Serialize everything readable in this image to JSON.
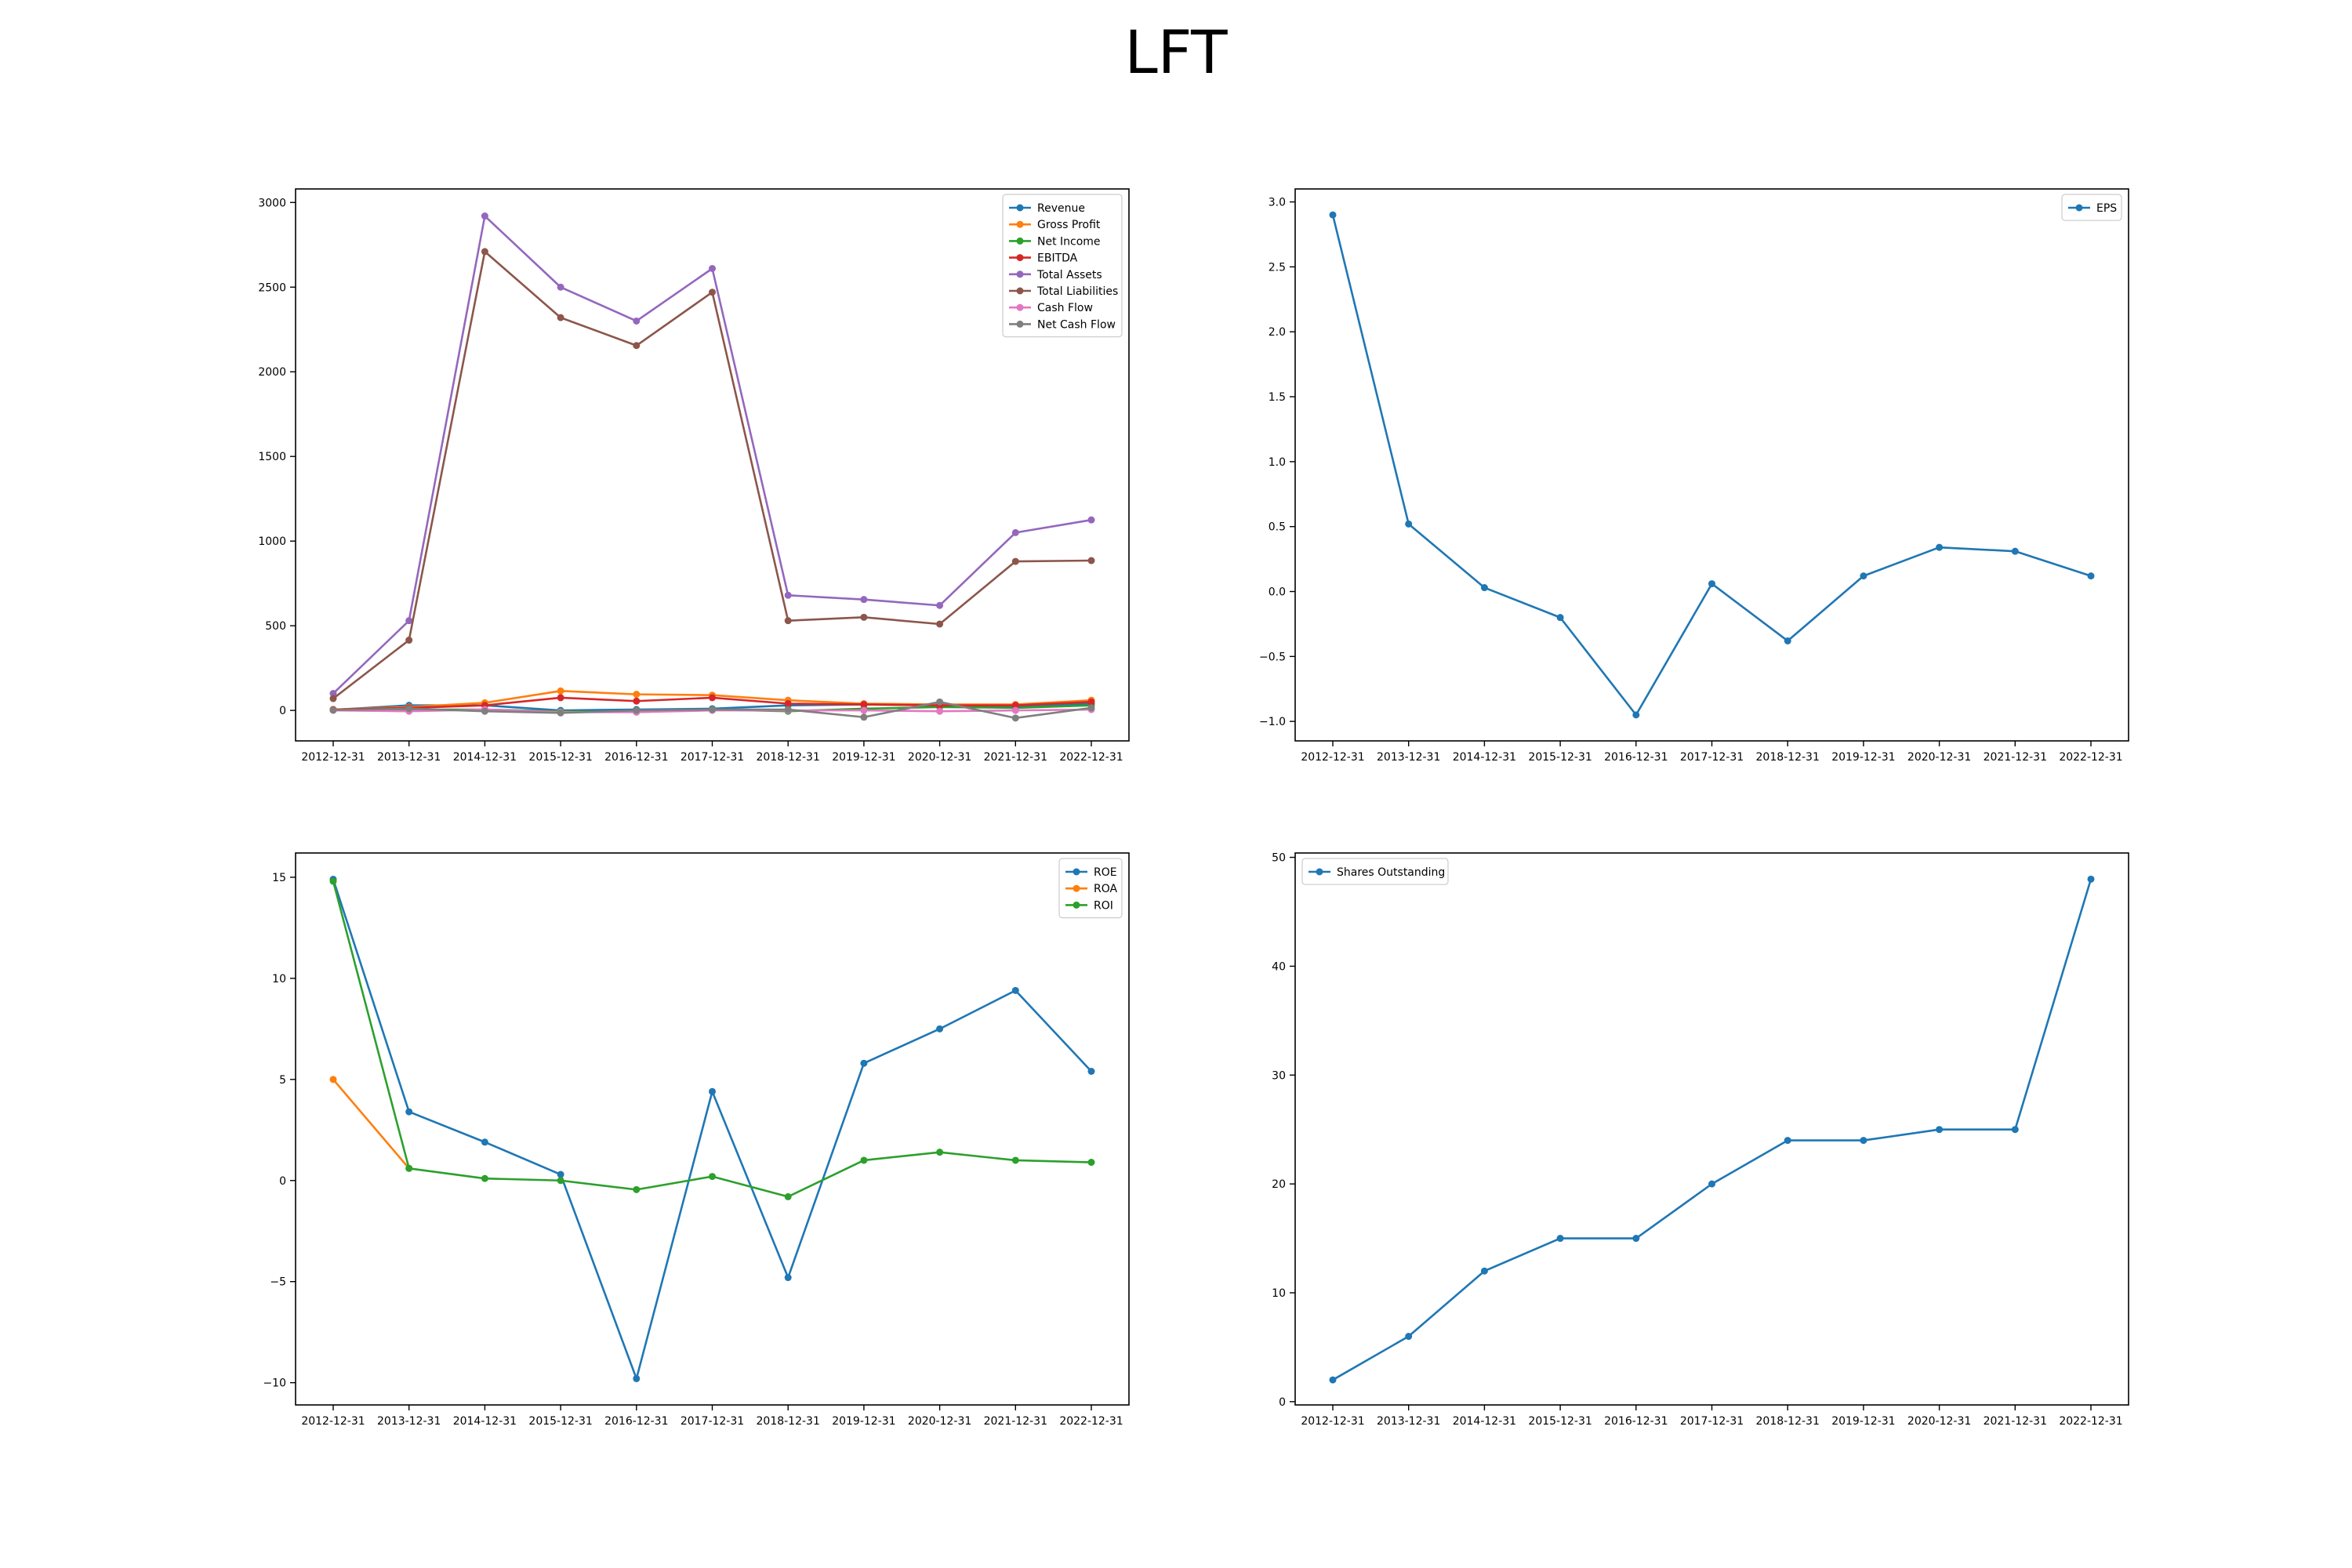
{
  "page_title": "LFT",
  "colors": {
    "blue": "#1f77b4",
    "orange": "#ff7f0e",
    "green": "#2ca02c",
    "red": "#d62728",
    "purple": "#9467bd",
    "brown": "#8c564b",
    "pink": "#e377c2",
    "gray": "#7f7f7f"
  },
  "chart_data": [
    {
      "type": "line",
      "title": "",
      "xlabel": "",
      "ylabel": "",
      "legend_position": "top-right",
      "grid": false,
      "x": [
        "2012-12-31",
        "2013-12-31",
        "2014-12-31",
        "2015-12-31",
        "2016-12-31",
        "2017-12-31",
        "2018-12-31",
        "2019-12-31",
        "2020-12-31",
        "2021-12-31",
        "2022-12-31"
      ],
      "ylim": [
        -180,
        3080
      ],
      "yticks": [
        0,
        500,
        1000,
        1500,
        2000,
        2500,
        3000
      ],
      "series": [
        {
          "name": "Revenue",
          "color": "#1f77b4",
          "values": [
            3,
            30,
            30,
            0,
            5,
            10,
            30,
            35,
            30,
            25,
            40
          ]
        },
        {
          "name": "Gross Profit",
          "color": "#ff7f0e",
          "values": [
            5,
            20,
            45,
            115,
            95,
            90,
            60,
            40,
            35,
            35,
            60
          ]
        },
        {
          "name": "Net Income",
          "color": "#2ca02c",
          "values": [
            3,
            5,
            5,
            -5,
            -10,
            5,
            -5,
            10,
            20,
            15,
            30
          ]
        },
        {
          "name": "EBITDA",
          "color": "#d62728",
          "values": [
            5,
            15,
            30,
            75,
            55,
            75,
            40,
            35,
            30,
            30,
            50
          ]
        },
        {
          "name": "Total Assets",
          "color": "#9467bd",
          "values": [
            100,
            530,
            2920,
            2500,
            2300,
            2610,
            680,
            655,
            620,
            1050,
            1125
          ]
        },
        {
          "name": "Total Liabilities",
          "color": "#8c564b",
          "values": [
            70,
            415,
            2710,
            2320,
            2155,
            2470,
            530,
            550,
            510,
            880,
            885
          ]
        },
        {
          "name": "Cash Flow",
          "color": "#e377c2",
          "values": [
            0,
            -5,
            5,
            -10,
            -10,
            0,
            0,
            0,
            -5,
            0,
            5
          ]
        },
        {
          "name": "Net Cash Flow",
          "color": "#7f7f7f",
          "values": [
            2,
            10,
            -5,
            -15,
            0,
            5,
            5,
            -40,
            50,
            -45,
            15
          ]
        }
      ]
    },
    {
      "type": "line",
      "title": "",
      "xlabel": "",
      "ylabel": "",
      "legend_position": "top-right",
      "grid": false,
      "x": [
        "2012-12-31",
        "2013-12-31",
        "2014-12-31",
        "2015-12-31",
        "2016-12-31",
        "2017-12-31",
        "2018-12-31",
        "2019-12-31",
        "2020-12-31",
        "2021-12-31",
        "2022-12-31"
      ],
      "ylim": [
        -1.15,
        3.1
      ],
      "yticks": [
        -1.0,
        -0.5,
        0.0,
        0.5,
        1.0,
        1.5,
        2.0,
        2.5,
        3.0
      ],
      "series": [
        {
          "name": "EPS",
          "color": "#1f77b4",
          "values": [
            2.9,
            0.52,
            0.03,
            -0.2,
            -0.95,
            0.06,
            -0.38,
            0.12,
            0.34,
            0.31,
            0.12
          ]
        }
      ]
    },
    {
      "type": "line",
      "title": "",
      "xlabel": "",
      "ylabel": "",
      "legend_position": "top-right",
      "grid": false,
      "x": [
        "2012-12-31",
        "2013-12-31",
        "2014-12-31",
        "2015-12-31",
        "2016-12-31",
        "2017-12-31",
        "2018-12-31",
        "2019-12-31",
        "2020-12-31",
        "2021-12-31",
        "2022-12-31"
      ],
      "ylim": [
        -11.1,
        16.2
      ],
      "yticks": [
        -10,
        -5,
        0,
        5,
        10,
        15
      ],
      "series": [
        {
          "name": "ROE",
          "color": "#1f77b4",
          "values": [
            14.9,
            3.4,
            1.9,
            0.3,
            -9.8,
            4.4,
            -4.8,
            5.8,
            7.5,
            9.4,
            5.4
          ]
        },
        {
          "name": "ROA",
          "color": "#ff7f0e",
          "values": [
            5.0,
            0.6,
            null,
            null,
            null,
            null,
            null,
            null,
            null,
            null,
            null
          ]
        },
        {
          "name": "ROI",
          "color": "#2ca02c",
          "values": [
            14.8,
            0.6,
            0.1,
            0.0,
            -0.45,
            0.2,
            -0.8,
            1.0,
            1.4,
            1.0,
            0.9
          ]
        }
      ]
    },
    {
      "type": "line",
      "title": "",
      "xlabel": "",
      "ylabel": "",
      "legend_position": "top-left",
      "grid": false,
      "x": [
        "2012-12-31",
        "2013-12-31",
        "2014-12-31",
        "2015-12-31",
        "2016-12-31",
        "2017-12-31",
        "2018-12-31",
        "2019-12-31",
        "2020-12-31",
        "2021-12-31",
        "2022-12-31"
      ],
      "ylim": [
        -0.3,
        50.4
      ],
      "yticks": [
        0,
        10,
        20,
        30,
        40,
        50
      ],
      "series": [
        {
          "name": "Shares Outstanding",
          "color": "#1f77b4",
          "values": [
            2,
            6,
            12,
            15,
            15,
            20,
            24,
            24,
            25,
            25,
            48
          ]
        }
      ]
    }
  ]
}
